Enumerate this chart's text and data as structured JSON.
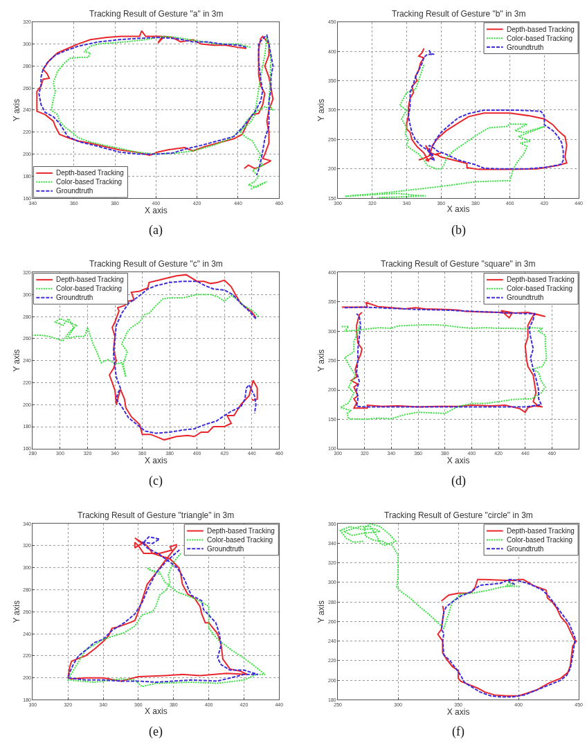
{
  "chart_data": [
    {
      "type": "line",
      "title": "Tracking Result of Gesture \"a\" in 3m",
      "xlabel": "X axis",
      "ylabel": "Y axis",
      "xlim": [
        340,
        460
      ],
      "ylim": [
        160,
        320
      ],
      "xticks": [
        340,
        360,
        380,
        400,
        420,
        440,
        460
      ],
      "yticks": [
        160,
        180,
        200,
        220,
        240,
        260,
        280,
        300,
        320
      ],
      "grid": true,
      "legend": "bottom left",
      "annotations": [
        "(a)"
      ],
      "series": [
        {
          "name": "Depth-based Tracking",
          "color": "#e8262b",
          "line_style": "solid",
          "x": [
            444,
            440,
            434,
            428,
            422,
            418,
            412,
            408,
            404,
            401,
            403,
            395,
            393,
            392,
            383,
            376,
            368,
            362,
            357,
            352,
            348,
            345,
            347,
            348,
            345,
            344,
            342,
            342,
            342,
            346,
            350,
            351,
            353,
            357,
            362,
            368,
            375,
            382,
            390,
            397,
            401,
            406,
            414,
            418,
            424,
            432,
            438,
            442,
            445,
            447,
            450,
            452,
            453,
            451,
            450,
            450,
            450,
            451,
            452,
            455,
            455,
            453,
            455,
            456,
            457,
            455,
            454,
            455,
            455,
            453,
            452,
            456,
            453,
            450,
            448,
            445,
            443
          ],
          "values": [
            296,
            297,
            299,
            299,
            300,
            304,
            302,
            306,
            307,
            301,
            307,
            307,
            312,
            307,
            307,
            306,
            304,
            300,
            296,
            292,
            285,
            277,
            273,
            269,
            268,
            262,
            257,
            250,
            239,
            236,
            230,
            225,
            218,
            215,
            212,
            210,
            207,
            204,
            202,
            199,
            202,
            204,
            206,
            203,
            207,
            211,
            214,
            218,
            230,
            236,
            237,
            245,
            255,
            262,
            272,
            285,
            295,
            305,
            307,
            300,
            290,
            280,
            270,
            260,
            250,
            240,
            230,
            220,
            210,
            200,
            196,
            194,
            191,
            188,
            187,
            190,
            187
          ]
        },
        {
          "name": "Color-based Tracking",
          "color": "#33e03a",
          "line_style": "dotted",
          "x": [
            446,
            440,
            430,
            420,
            410,
            404,
            395,
            385,
            378,
            372,
            368,
            365,
            368,
            367,
            363,
            358,
            355,
            352,
            350,
            351,
            350,
            349,
            352,
            353,
            356,
            359,
            362,
            368,
            375,
            383,
            390,
            400,
            410,
            418,
            428,
            436,
            443,
            446,
            448,
            451,
            453,
            454,
            455,
            456,
            455,
            457,
            453,
            448,
            444,
            441,
            444,
            447,
            449,
            451,
            450,
            452,
            447,
            450,
            448,
            445,
            449,
            454,
            450,
            446
          ],
          "values": [
            297,
            300,
            300,
            303,
            306,
            307,
            304,
            302,
            301,
            300,
            298,
            293,
            292,
            288,
            288,
            287,
            282,
            275,
            265,
            257,
            250,
            240,
            236,
            230,
            224,
            220,
            215,
            211,
            208,
            205,
            202,
            200,
            201,
            203,
            208,
            214,
            224,
            229,
            235,
            270,
            290,
            307,
            300,
            285,
            245,
            240,
            243,
            238,
            230,
            220,
            215,
            212,
            205,
            200,
            195,
            190,
            185,
            180,
            175,
            172,
            170,
            175,
            172,
            168
          ]
        },
        {
          "name": "Groundtruth",
          "color": "#3c2bd9",
          "line_style": "dashed",
          "x": [
            444,
            440,
            432,
            425,
            418,
            410,
            400,
            390,
            382,
            372,
            362,
            356,
            351,
            347,
            345,
            344,
            344,
            343,
            344,
            346,
            350,
            353,
            357,
            363,
            372,
            382,
            392,
            400,
            408,
            415,
            422,
            430,
            438,
            443,
            448,
            451,
            452,
            451,
            450,
            450,
            452,
            454,
            455,
            456,
            457,
            456,
            456,
            455,
            455,
            455,
            453,
            452,
            451,
            450,
            449
          ],
          "values": [
            297,
            299,
            300,
            302,
            302,
            305,
            306,
            305,
            304,
            302,
            298,
            294,
            290,
            283,
            277,
            270,
            262,
            255,
            245,
            238,
            234,
            228,
            216,
            211,
            207,
            202,
            200,
            200,
            201,
            205,
            208,
            212,
            216,
            226,
            238,
            248,
            258,
            268,
            285,
            300,
            305,
            308,
            300,
            290,
            280,
            270,
            258,
            248,
            237,
            225,
            214,
            203,
            193,
            186,
            181
          ]
        }
      ]
    },
    {
      "type": "line",
      "title": "Tracking Result of Gesture \"b\" in 3m",
      "xlabel": "X axis",
      "ylabel": "Y axis",
      "xlim": [
        300,
        440
      ],
      "ylim": [
        150,
        450
      ],
      "xticks": [
        300,
        320,
        340,
        360,
        380,
        400,
        420,
        440
      ],
      "yticks": [
        150,
        200,
        250,
        300,
        350,
        400,
        450
      ],
      "grid": true,
      "legend": "top right",
      "annotations": [
        "(b)"
      ],
      "series": [
        {
          "name": "Depth-based Tracking",
          "color": "#e8262b",
          "line_style": "solid",
          "x": [
            350,
            349,
            347,
            350,
            348,
            347,
            345,
            346,
            343,
            344,
            342,
            341,
            341,
            340,
            340,
            342,
            343,
            346,
            350,
            352,
            353,
            351,
            355,
            354,
            351,
            353,
            357,
            360,
            357,
            360,
            367,
            375,
            375,
            382,
            400,
            416,
            422,
            428,
            433,
            432,
            433,
            432,
            428,
            425,
            420,
            412,
            400,
            385,
            376,
            370,
            363,
            358,
            355,
            354,
            353,
            350,
            347
          ],
          "values": [
            405,
            398,
            392,
            389,
            380,
            368,
            357,
            350,
            340,
            330,
            320,
            305,
            290,
            278,
            268,
            262,
            250,
            238,
            227,
            217,
            213,
            215,
            218,
            226,
            240,
            228,
            224,
            227,
            225,
            220,
            215,
            209,
            202,
            199,
            199,
            200,
            203,
            206,
            210,
            220,
            240,
            255,
            265,
            275,
            285,
            290,
            295,
            295,
            289,
            278,
            265,
            252,
            240,
            230,
            222,
            218,
            215
          ]
        },
        {
          "name": "Color-based Tracking",
          "color": "#33e03a",
          "line_style": "dotted",
          "x": [
            350,
            348,
            347,
            345,
            340,
            336,
            340,
            337,
            340,
            339,
            341,
            340,
            342,
            347,
            350,
            352,
            357,
            360,
            362,
            363,
            367,
            372,
            377,
            382,
            388,
            398,
            400,
            410,
            403,
            408,
            420,
            405,
            412,
            406,
            410,
            408,
            406,
            404,
            402,
            400,
            380,
            360,
            345,
            330,
            320,
            310,
            304,
            315,
            325,
            335,
            345,
            351,
            335,
            323
          ],
          "values": [
            377,
            360,
            350,
            335,
            330,
            308,
            300,
            285,
            270,
            260,
            250,
            240,
            235,
            225,
            215,
            206,
            200,
            200,
            208,
            218,
            230,
            240,
            250,
            260,
            270,
            272,
            276,
            276,
            265,
            262,
            272,
            255,
            247,
            244,
            238,
            225,
            218,
            210,
            200,
            180,
            178,
            170,
            165,
            160,
            157,
            155,
            153,
            155,
            157,
            158,
            155,
            154,
            152,
            151
          ]
        },
        {
          "name": "Groundtruth",
          "color": "#3c2bd9",
          "line_style": "dashed",
          "x": [
            353,
            354,
            356,
            352,
            350,
            349,
            347,
            345,
            344,
            342,
            342,
            342,
            341,
            342,
            343,
            345,
            348,
            352,
            355,
            356,
            354,
            353,
            356,
            358,
            362,
            370,
            380,
            385,
            395,
            410,
            422,
            430,
            431,
            431,
            430,
            428,
            425,
            420,
            420,
            418,
            405,
            385,
            376,
            370,
            365,
            360,
            357,
            355
          ],
          "values": [
            402,
            396,
            395,
            395,
            390,
            380,
            368,
            355,
            345,
            330,
            320,
            305,
            290,
            275,
            262,
            250,
            240,
            232,
            224,
            214,
            218,
            240,
            235,
            230,
            226,
            215,
            207,
            201,
            200,
            200,
            203,
            208,
            215,
            230,
            245,
            255,
            265,
            275,
            290,
            298,
            300,
            300,
            294,
            287,
            275,
            262,
            250,
            238
          ]
        }
      ]
    },
    {
      "type": "line",
      "title": "Tracking Result of Gesture \"c\" in 3m",
      "xlabel": "X axis",
      "ylabel": "Y axis",
      "xlim": [
        280,
        460
      ],
      "ylim": [
        160,
        320
      ],
      "xticks": [
        280,
        300,
        320,
        340,
        360,
        380,
        400,
        420,
        440,
        460
      ],
      "yticks": [
        160,
        180,
        200,
        220,
        240,
        260,
        280,
        300,
        320
      ],
      "grid": true,
      "legend": "top left",
      "annotations": [
        "(c)"
      ],
      "series": [
        {
          "name": "Depth-based Tracking",
          "color": "#e8262b",
          "line_style": "solid",
          "x": [
            443,
            440,
            436,
            432,
            428,
            425,
            420,
            415,
            410,
            405,
            400,
            392,
            385,
            378,
            372,
            365,
            364,
            358,
            352,
            354,
            350,
            347,
            342,
            343,
            340,
            338,
            340,
            339,
            341,
            339,
            336,
            338,
            340,
            341,
            344,
            347,
            348,
            352,
            358,
            360,
            366,
            372,
            376,
            385,
            393,
            398,
            403,
            408,
            412,
            420,
            425,
            422,
            427,
            430,
            432,
            438,
            441,
            444,
            444,
            441,
            440
          ],
          "values": [
            279,
            284,
            288,
            292,
            300,
            307,
            313,
            311,
            310,
            312,
            312,
            318,
            317,
            315,
            313,
            311,
            306,
            303,
            302,
            295,
            294,
            290,
            288,
            285,
            275,
            270,
            262,
            250,
            240,
            233,
            227,
            220,
            213,
            200,
            214,
            205,
            197,
            189,
            182,
            173,
            173,
            170,
            168,
            171,
            172,
            171,
            175,
            175,
            180,
            180,
            183,
            190,
            190,
            196,
            200,
            208,
            222,
            215,
            205,
            204,
            205
          ]
        },
        {
          "name": "Color-based Tracking",
          "color": "#33e03a",
          "line_style": "dotted",
          "x": [
            445,
            440,
            434,
            430,
            425,
            420,
            415,
            410,
            400,
            390,
            380,
            375,
            370,
            365,
            362,
            358,
            352,
            349,
            345,
            349,
            346,
            348,
            345,
            340,
            335,
            330,
            326,
            324,
            320,
            318,
            312,
            305,
            310,
            306,
            302,
            296,
            300,
            312,
            306,
            302,
            292,
            286,
            280
          ],
          "values": [
            280,
            286,
            290,
            295,
            299,
            294,
            298,
            300,
            300,
            297,
            297,
            296,
            290,
            283,
            282,
            275,
            270,
            266,
            255,
            248,
            237,
            225,
            238,
            237,
            241,
            238,
            250,
            255,
            270,
            262,
            262,
            260,
            270,
            278,
            272,
            275,
            278,
            272,
            265,
            258,
            262,
            263,
            263
          ]
        },
        {
          "name": "Groundtruth",
          "color": "#3c2bd9",
          "line_style": "dashed",
          "x": [
            443,
            438,
            432,
            426,
            420,
            412,
            406,
            400,
            390,
            380,
            370,
            364,
            357,
            350,
            345,
            341,
            340,
            339,
            340,
            341,
            344,
            342,
            341,
            345,
            350,
            356,
            362,
            370,
            380,
            390,
            398,
            406,
            414,
            420,
            425,
            432,
            435,
            436,
            438,
            442,
            443,
            442
          ],
          "values": [
            278,
            285,
            292,
            300,
            304,
            305,
            308,
            312,
            312,
            311,
            308,
            305,
            298,
            292,
            283,
            272,
            260,
            245,
            235,
            225,
            215,
            210,
            205,
            198,
            188,
            182,
            176,
            174,
            175,
            177,
            178,
            182,
            185,
            190,
            194,
            198,
            205,
            215,
            218,
            208,
            200,
            192
          ]
        }
      ]
    },
    {
      "type": "line",
      "title": "Tracking Result of Gesture \"square\" in 3m",
      "xlabel": "X axis",
      "ylabel": "Y axis",
      "xlim": [
        300,
        480
      ],
      "ylim": [
        100,
        400
      ],
      "xticks": [
        300,
        320,
        340,
        360,
        380,
        400,
        420,
        440,
        460
      ],
      "yticks": [
        100,
        150,
        200,
        250,
        300,
        350,
        400
      ],
      "grid": true,
      "legend": "top right",
      "annotations": [
        "(d)"
      ],
      "series": [
        {
          "name": "Depth-based Tracking",
          "color": "#e8262b",
          "line_style": "solid",
          "x": [
            303,
            315,
            322,
            321,
            330,
            340,
            350,
            358,
            365,
            380,
            390,
            395,
            405,
            420,
            430,
            428,
            422,
            432,
            442,
            455,
            447,
            445,
            442,
            442,
            440,
            441,
            442,
            446,
            447,
            448,
            446,
            449,
            453,
            447,
            442,
            440,
            436,
            425,
            415,
            400,
            390,
            375,
            360,
            345,
            333,
            322,
            322,
            312,
            314,
            312,
            315,
            312,
            315,
            310,
            314,
            313,
            315,
            317,
            318,
            315,
            314,
            314,
            316,
            318
          ],
          "values": [
            341,
            341,
            341,
            349,
            342,
            340,
            338,
            340,
            338,
            337,
            336,
            334,
            333,
            332,
            330,
            323,
            335,
            331,
            332,
            325,
            330,
            323,
            310,
            290,
            275,
            252,
            240,
            225,
            210,
            195,
            180,
            174,
            171,
            173,
            170,
            162,
            168,
            174,
            173,
            174,
            172,
            172,
            171,
            173,
            172,
            174,
            169,
            169,
            178,
            185,
            190,
            205,
            210,
            216,
            222,
            235,
            250,
            260,
            270,
            280,
            300,
            310,
            328,
            332
          ]
        },
        {
          "name": "Color-based Tracking",
          "color": "#33e03a",
          "line_style": "dotted",
          "x": [
            303,
            308,
            305,
            315,
            330,
            340,
            345,
            355,
            365,
            372,
            380,
            390,
            400,
            410,
            420,
            430,
            440,
            445,
            453,
            450,
            455,
            455,
            456,
            453,
            445,
            450,
            452,
            455,
            452,
            445,
            432,
            420,
            410,
            400,
            390,
            380,
            370,
            360,
            350,
            340,
            330,
            320,
            308,
            307,
            310,
            302,
            308,
            312,
            308,
            313,
            305,
            312,
            312,
            315,
            316
          ],
          "values": [
            308,
            308,
            300,
            302,
            306,
            305,
            309,
            310,
            311,
            311,
            310,
            307,
            305,
            306,
            305,
            305,
            304,
            306,
            305,
            300,
            293,
            275,
            255,
            240,
            235,
            230,
            215,
            205,
            195,
            185,
            184,
            180,
            177,
            177,
            172,
            160,
            161,
            162,
            158,
            151,
            152,
            150,
            151,
            160,
            165,
            170,
            178,
            195,
            205,
            225,
            255,
            265,
            282,
            300,
            310
          ]
        },
        {
          "name": "Groundtruth",
          "color": "#3c2bd9",
          "line_style": "dashed",
          "x": [
            305,
            320,
            340,
            360,
            380,
            400,
            420,
            440,
            447,
            446,
            443,
            444,
            446,
            444,
            446,
            448,
            450,
            450,
            452,
            440,
            420,
            400,
            380,
            360,
            340,
            320,
            314,
            315,
            314,
            316,
            314,
            315,
            315,
            316,
            317,
            316,
            314
          ],
          "values": [
            340,
            341,
            339,
            337,
            336,
            334,
            332,
            330,
            330,
            320,
            305,
            290,
            270,
            255,
            235,
            220,
            200,
            185,
            175,
            171,
            171,
            171,
            171,
            171,
            171,
            171,
            172,
            185,
            200,
            215,
            230,
            250,
            270,
            290,
            310,
            325,
            330
          ]
        }
      ]
    },
    {
      "type": "line",
      "title": "Tracking Result of Gesture \"triangle\" in 3m",
      "xlabel": "X axis",
      "ylabel": "Y axis",
      "xlim": [
        300,
        440
      ],
      "ylim": [
        180,
        340
      ],
      "xticks": [
        300,
        320,
        340,
        360,
        380,
        400,
        420,
        440
      ],
      "yticks": [
        180,
        200,
        220,
        240,
        260,
        280,
        300,
        320,
        340
      ],
      "grid": true,
      "legend": "top right",
      "annotations": [
        "(e)"
      ],
      "series": [
        {
          "name": "Depth-based Tracking",
          "color": "#e8262b",
          "line_style": "solid",
          "x": [
            382,
            378,
            379,
            372,
            363,
            360,
            358,
            358,
            362,
            358,
            365,
            368,
            378,
            383,
            384,
            385,
            388,
            392,
            395,
            396,
            398,
            400,
            405,
            407,
            408,
            412,
            418,
            422,
            410,
            395,
            385,
            375,
            360,
            350,
            340,
            330,
            322,
            320,
            321,
            322,
            325,
            330,
            335,
            340,
            343,
            345,
            348,
            355,
            358,
            360,
            363,
            365,
            369,
            375,
            382
          ],
          "values": [
            321,
            319,
            316,
            313,
            313,
            320,
            323,
            318,
            322,
            327,
            320,
            313,
            308,
            300,
            295,
            285,
            276,
            272,
            265,
            258,
            250,
            250,
            240,
            230,
            217,
            208,
            206,
            203,
            204,
            202,
            203,
            202,
            201,
            197,
            200,
            200,
            199,
            200,
            210,
            215,
            217,
            220,
            226,
            233,
            238,
            245,
            246,
            250,
            252,
            260,
            275,
            285,
            293,
            306,
            320
          ]
        },
        {
          "name": "Color-based Tracking",
          "color": "#33e03a",
          "line_style": "dotted",
          "x": [
            384,
            380,
            378,
            377,
            378,
            376,
            372,
            370,
            368,
            362,
            358,
            352,
            340,
            335,
            330,
            325,
            322,
            320,
            335,
            350,
            358,
            362,
            370,
            390,
            405,
            420,
            427,
            432,
            425,
            418,
            413,
            405,
            400,
            400,
            400,
            392,
            382,
            375,
            372,
            366,
            365,
            368,
            372
          ],
          "values": [
            313,
            305,
            298,
            293,
            287,
            280,
            275,
            265,
            260,
            257,
            247,
            241,
            235,
            230,
            225,
            212,
            204,
            198,
            196,
            199,
            198,
            192,
            195,
            196,
            195,
            198,
            203,
            203,
            212,
            220,
            225,
            235,
            245,
            258,
            265,
            272,
            278,
            287,
            296,
            298,
            300,
            297,
            294
          ]
        },
        {
          "name": "Groundtruth",
          "color": "#3c2bd9",
          "line_style": "dashed",
          "x": [
            363,
            366,
            372,
            368,
            362,
            365,
            372,
            378,
            382,
            386,
            390,
            396,
            397,
            400,
            404,
            406,
            407,
            405,
            407,
            412,
            420,
            428,
            420,
            405,
            390,
            370,
            360,
            350,
            340,
            330,
            320,
            321,
            323,
            326,
            330,
            335,
            340,
            345,
            352,
            358,
            362,
            366,
            370,
            376,
            384
          ],
          "values": [
            323,
            328,
            326,
            322,
            323,
            318,
            312,
            305,
            300,
            290,
            275,
            270,
            262,
            257,
            250,
            240,
            230,
            218,
            212,
            207,
            207,
            203,
            203,
            197,
            198,
            196,
            197,
            197,
            198,
            198,
            200,
            205,
            212,
            220,
            225,
            232,
            235,
            243,
            250,
            258,
            268,
            283,
            295,
            306,
            317
          ]
        }
      ]
    },
    {
      "type": "line",
      "title": "Tracking Result of Gesture \"circle\" in 3m",
      "xlabel": "X axis",
      "ylabel": "Y axis",
      "xlim": [
        250,
        450
      ],
      "ylim": [
        180,
        360
      ],
      "xticks": [
        250,
        300,
        350,
        400,
        450
      ],
      "yticks": [
        180,
        200,
        220,
        240,
        260,
        280,
        300,
        320,
        340,
        360
      ],
      "grid": true,
      "legend": "top right",
      "annotations": [
        "(f)"
      ],
      "series": [
        {
          "name": "Depth-based Tracking",
          "color": "#e8262b",
          "line_style": "solid",
          "x": [
            336,
            342,
            350,
            357,
            361,
            364,
            366,
            372,
            390,
            397,
            400,
            404,
            412,
            423,
            424,
            428,
            432,
            435,
            440,
            446,
            448,
            445,
            443,
            441,
            435,
            425,
            415,
            400,
            390,
            380,
            372,
            366,
            358,
            352,
            350,
            350,
            345,
            340,
            337,
            337,
            333,
            336,
            337,
            338,
            337
          ],
          "values": [
            281,
            287,
            289,
            289,
            290,
            295,
            303,
            303,
            302,
            302,
            303,
            303,
            297,
            292,
            284,
            280,
            273,
            265,
            258,
            242,
            240,
            235,
            215,
            208,
            202,
            197,
            190,
            184,
            184,
            185,
            188,
            192,
            196,
            199,
            202,
            210,
            214,
            222,
            228,
            240,
            247,
            252,
            262,
            270,
            276
          ]
        },
        {
          "name": "Color-based Tracking",
          "color": "#33e03a",
          "line_style": "dotted",
          "x": [
            271,
            263,
            257,
            252,
            260,
            270,
            280,
            285,
            270,
            262,
            255,
            268,
            277,
            282,
            285,
            289,
            298,
            292,
            285,
            277,
            272,
            273,
            280,
            287,
            290,
            295,
            300,
            300,
            300,
            299,
            303,
            310,
            318,
            325,
            332,
            338,
            342,
            345,
            352,
            362,
            375,
            385,
            395,
            392,
            390,
            401
          ],
          "values": [
            342,
            341,
            345,
            353,
            357,
            354,
            355,
            352,
            350,
            348,
            352,
            357,
            357,
            348,
            340,
            338,
            342,
            350,
            357,
            360,
            356,
            347,
            343,
            342,
            340,
            338,
            328,
            315,
            306,
            295,
            290,
            284,
            275,
            268,
            260,
            253,
            268,
            280,
            288,
            289,
            292,
            295,
            297,
            300,
            296,
            296
          ]
        },
        {
          "name": "Groundtruth",
          "color": "#3c2bd9",
          "line_style": "dashed",
          "x": [
            397,
            393,
            391,
            395,
            402,
            410,
            420,
            425,
            430,
            436,
            442,
            447,
            445,
            443,
            440,
            435,
            425,
            415,
            405,
            395,
            385,
            377,
            368,
            360,
            355,
            352,
            348,
            343,
            338,
            337,
            338,
            336,
            337,
            338,
            340,
            345,
            352,
            360,
            368,
            376,
            385,
            390
          ],
          "values": [
            298,
            300,
            303,
            303,
            301,
            298,
            292,
            286,
            278,
            268,
            258,
            243,
            225,
            212,
            205,
            200,
            195,
            190,
            185,
            183,
            183,
            184,
            188,
            194,
            198,
            205,
            212,
            220,
            226,
            240,
            248,
            252,
            262,
            270,
            275,
            280,
            286,
            290,
            297,
            298,
            299,
            302
          ]
        }
      ]
    }
  ]
}
